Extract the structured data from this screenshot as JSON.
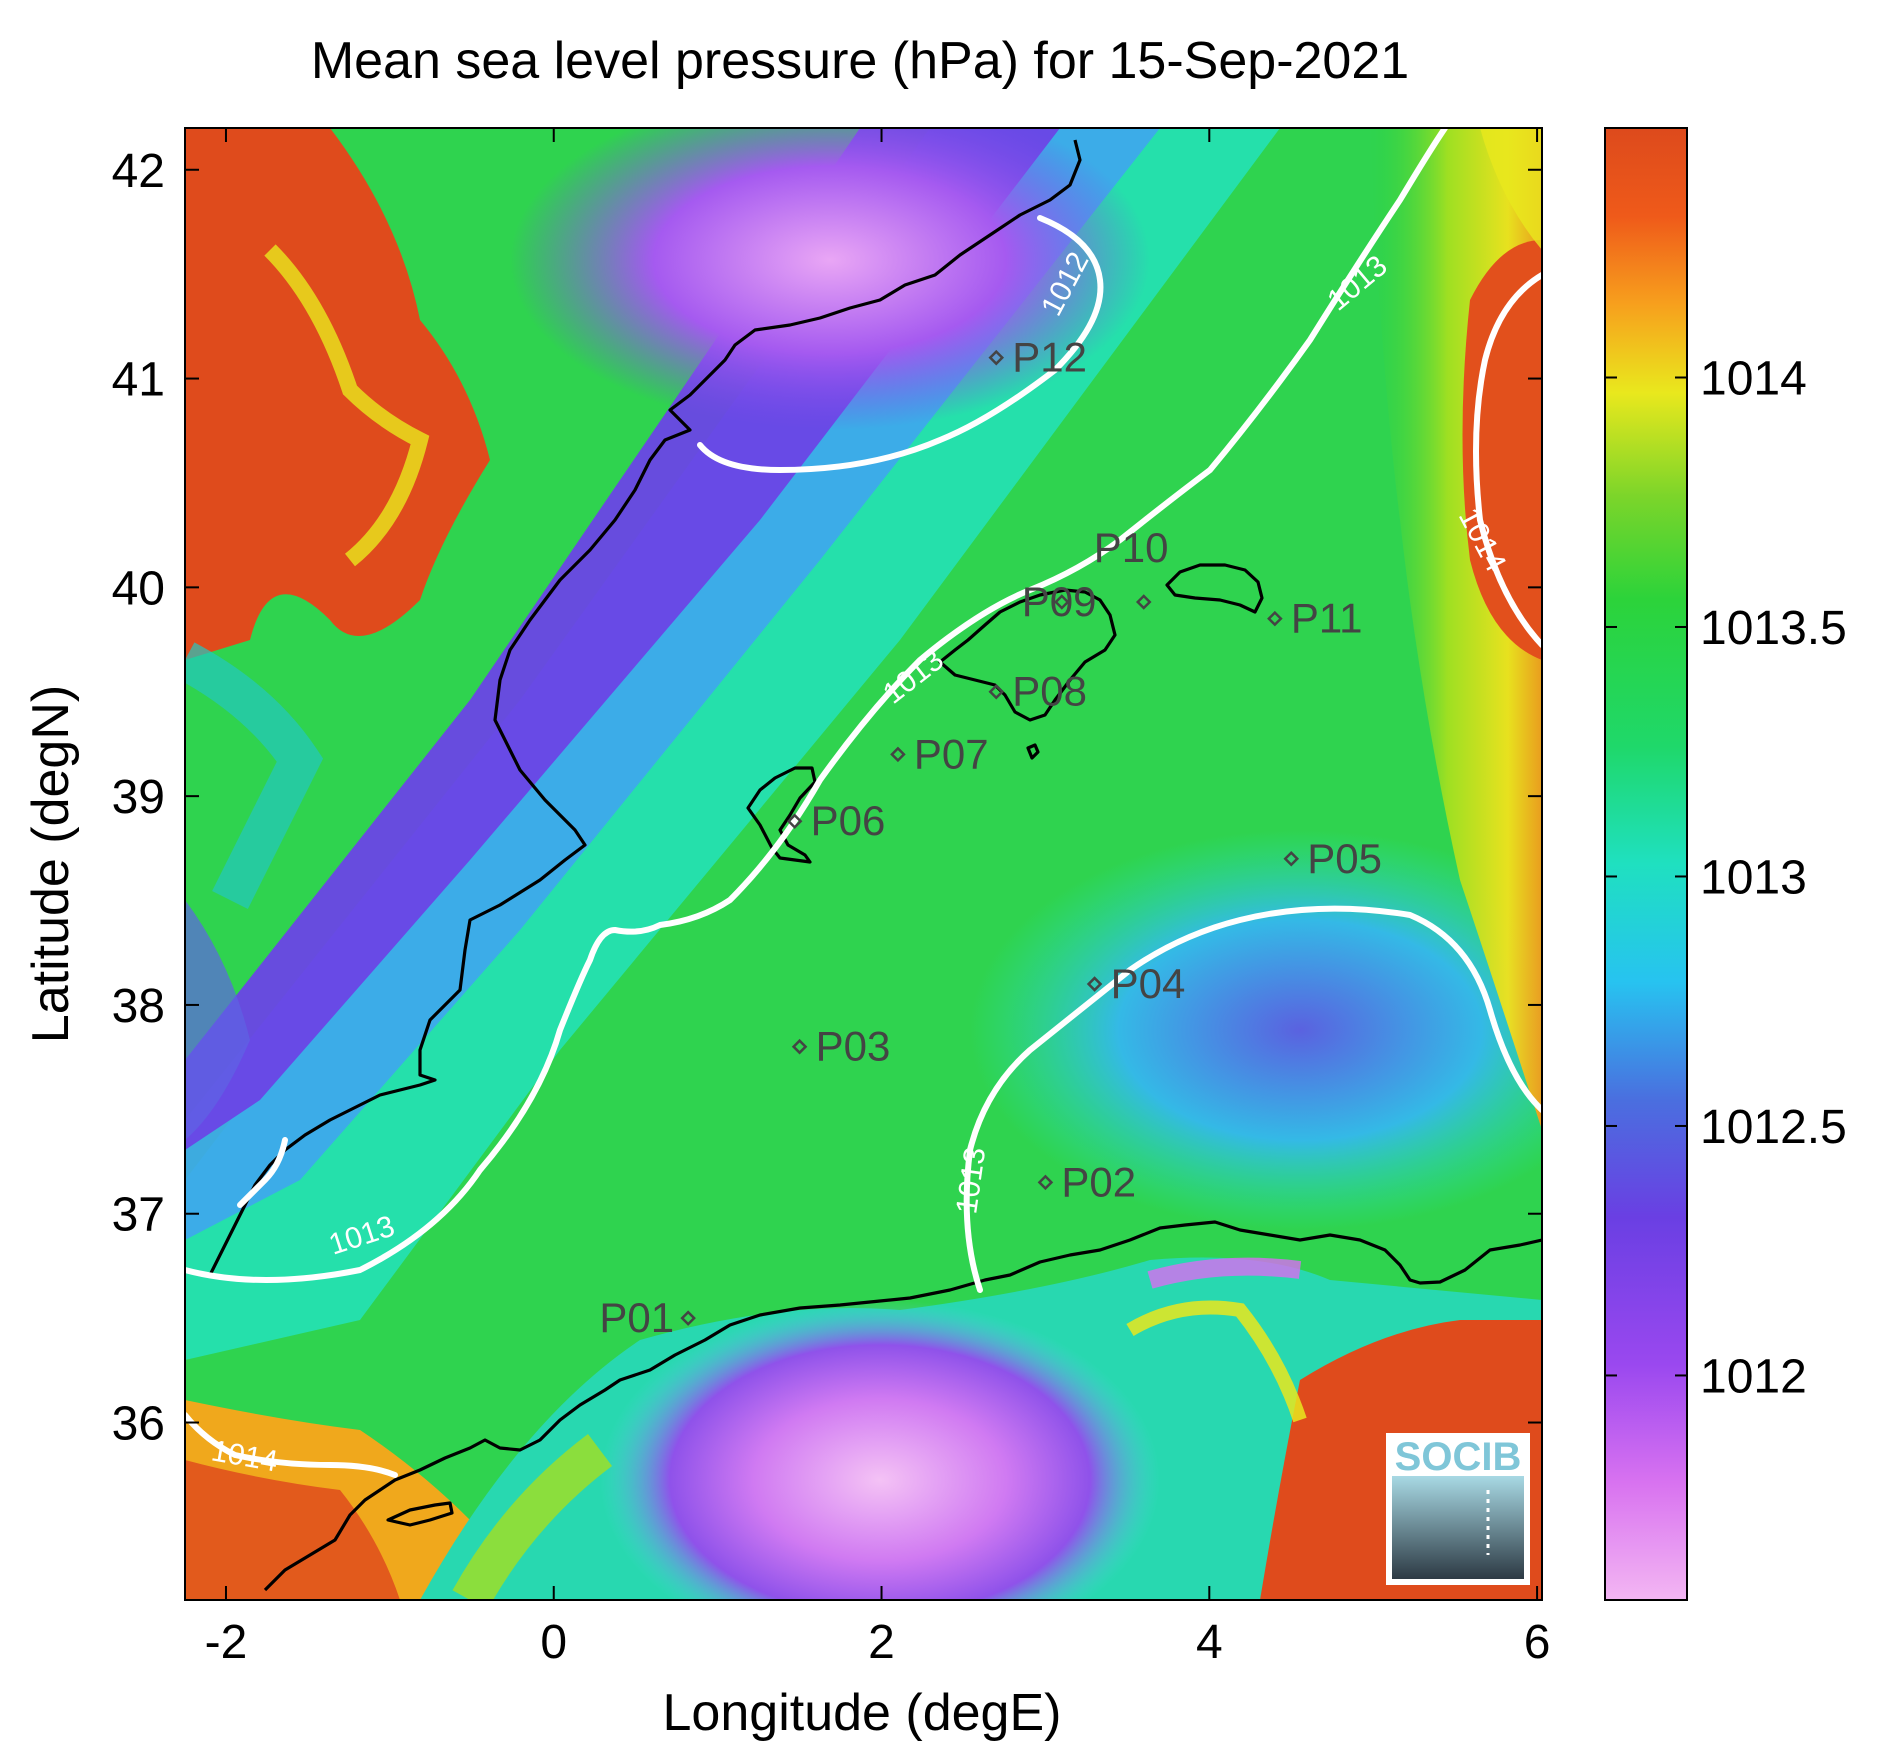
{
  "title": "Mean sea level pressure (hPa) for 15-Sep-2021",
  "xlabel": "Longitude (degE)",
  "ylabel": "Latitude (degN)",
  "xticks": [
    {
      "value": -2,
      "label": "-2"
    },
    {
      "value": 0,
      "label": "0"
    },
    {
      "value": 2,
      "label": "2"
    },
    {
      "value": 4,
      "label": "4"
    },
    {
      "value": 6,
      "label": "6"
    }
  ],
  "yticks": [
    {
      "value": 36,
      "label": "36"
    },
    {
      "value": 37,
      "label": "37"
    },
    {
      "value": 38,
      "label": "38"
    },
    {
      "value": 39,
      "label": "39"
    },
    {
      "value": 40,
      "label": "40"
    },
    {
      "value": 41,
      "label": "41"
    },
    {
      "value": 42,
      "label": "42"
    }
  ],
  "colorbar": {
    "range": [
      1011.55,
      1014.5
    ],
    "ticks": [
      {
        "value": 1012,
        "label": "1012"
      },
      {
        "value": 1012.5,
        "label": "1012.5"
      },
      {
        "value": 1013,
        "label": "1013"
      },
      {
        "value": 1013.5,
        "label": "1013.5"
      },
      {
        "value": 1014,
        "label": "1014"
      }
    ]
  },
  "contour_labels": [
    {
      "text": "1012"
    },
    {
      "text": "1013"
    },
    {
      "text": "1013"
    },
    {
      "text": "1013"
    },
    {
      "text": "1013"
    },
    {
      "text": "1014"
    },
    {
      "text": "1014"
    }
  ],
  "stations": [
    {
      "label": "P01",
      "lon": 0.82,
      "lat": 36.5
    },
    {
      "label": "P02",
      "lon": 3.0,
      "lat": 37.15
    },
    {
      "label": "P03",
      "lon": 1.5,
      "lat": 37.8
    },
    {
      "label": "P04",
      "lon": 3.3,
      "lat": 38.1
    },
    {
      "label": "P05",
      "lon": 4.5,
      "lat": 38.7
    },
    {
      "label": "P06",
      "lon": 1.47,
      "lat": 38.88
    },
    {
      "label": "P07",
      "lon": 2.1,
      "lat": 39.2
    },
    {
      "label": "P08",
      "lon": 2.7,
      "lat": 39.5
    },
    {
      "label": "P09",
      "lon": 3.1,
      "lat": 39.93
    },
    {
      "label": "P10",
      "lon": 3.6,
      "lat": 39.93
    },
    {
      "label": "P11",
      "lon": 4.4,
      "lat": 39.85
    },
    {
      "label": "P12",
      "lon": 2.7,
      "lat": 41.1
    }
  ],
  "logo": {
    "text": "SOCIB"
  },
  "colors": {
    "land_high": "#dd4a1c",
    "sea_mid": "#33d35a",
    "low": "#8b3af0",
    "contour": "#ffffff",
    "coast": "#000000"
  }
}
